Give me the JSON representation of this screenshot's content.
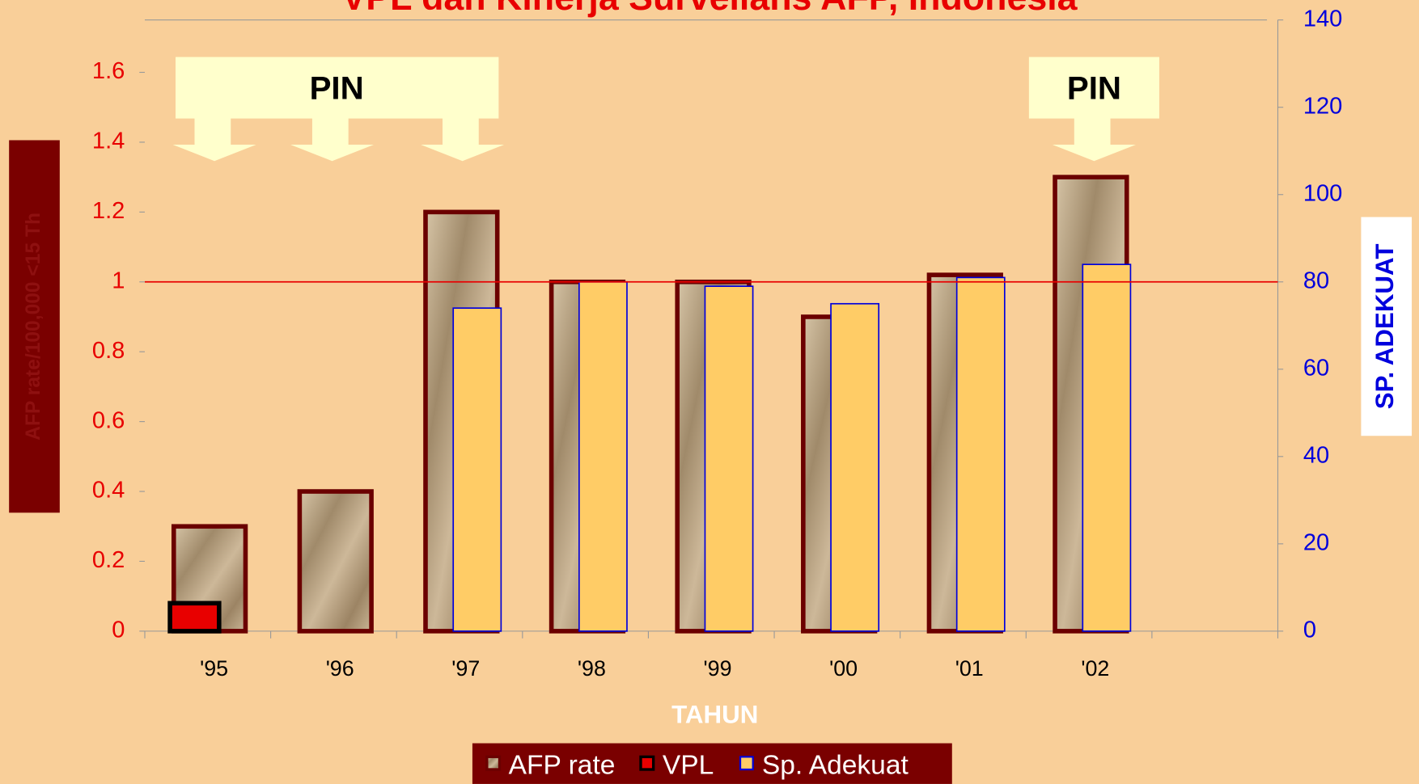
{
  "chart_data": {
    "type": "bar",
    "title": "VPL dan Kinerja Surveilans AFP, Indonesia",
    "y_label": "AFP rate/100,000 <15 Th",
    "y2_label": "SP. ADEKUAT",
    "x_label": "TAHUN",
    "categories": [
      "'95",
      "'96",
      "'97",
      "'98",
      "'99",
      "'00",
      "'01",
      "'02",
      null
    ],
    "series": [
      {
        "name": "AFP rate",
        "color": "#b8a282",
        "values": [
          0.3,
          0.4,
          1.2,
          1.0,
          1.0,
          0.9,
          1.02,
          1.3,
          null
        ]
      },
      {
        "name": "VPL",
        "color": "#e80000",
        "values": [
          0.08,
          null,
          null,
          null,
          null,
          null,
          null,
          null,
          null
        ]
      },
      {
        "name": "Sp. Adekuat",
        "color": "#ffcc66",
        "axis": "y2",
        "values": [
          null,
          null,
          74,
          80,
          79,
          75,
          81,
          84,
          null
        ]
      }
    ],
    "ylim": [
      0,
      1.75
    ],
    "yticks": [
      0,
      0.2,
      0.4,
      0.6,
      0.8,
      1,
      1.2,
      1.4,
      1.6
    ],
    "y2lim": [
      0,
      140
    ],
    "y2ticks": [
      0,
      20,
      40,
      60,
      80,
      100,
      120,
      140
    ],
    "reference_line": 1,
    "annotations": [
      "PIN",
      "PIN"
    ],
    "legend": "bottom"
  }
}
